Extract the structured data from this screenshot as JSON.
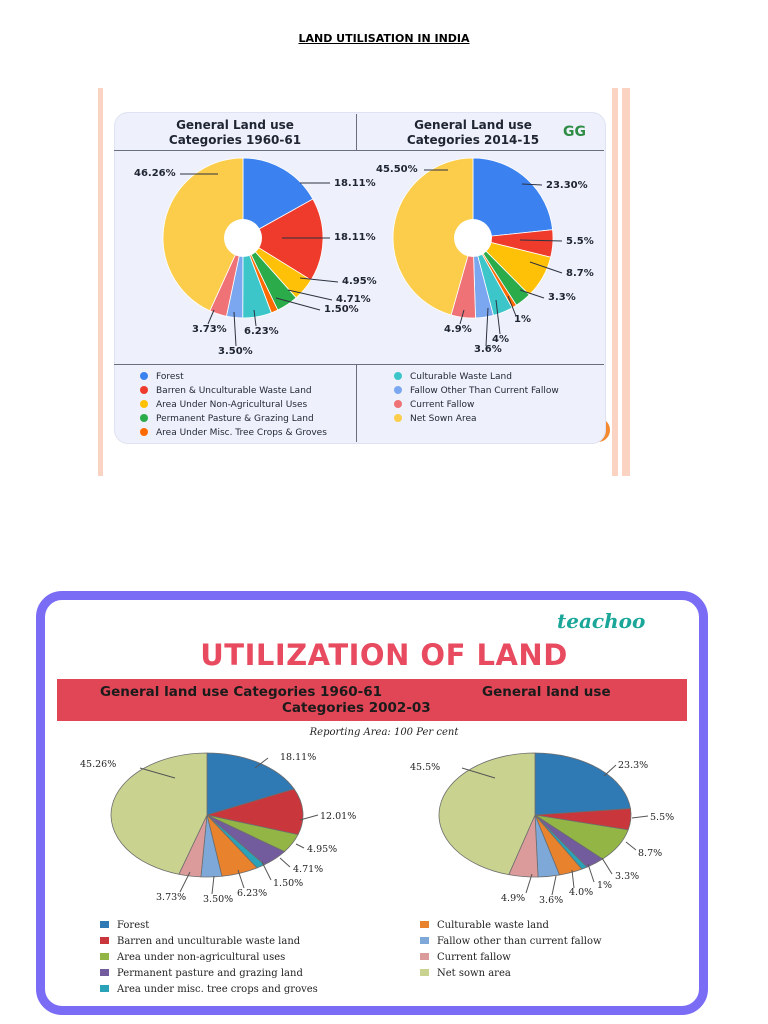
{
  "page": {
    "title": "LAND UTILISATION IN INDIA"
  },
  "figure1": {
    "header_left": "General Land use Categories 1960-61",
    "header_right": "General Land use Categories 2014-15",
    "logo_text": "GG",
    "colors": [
      "#3b82f0",
      "#ef3b2c",
      "#ffc107",
      "#2bab4a",
      "#ff6a00",
      "#3cc6c9",
      "#7ba7f0",
      "#ef7276",
      "#fbcd4b"
    ],
    "legend_left": [
      "Forest",
      "Barren & Unculturable Waste Land",
      "Area Under Non-Agricultural Uses",
      "Permanent Pasture & Grazing Land",
      "Area Under Misc. Tree Crops & Groves"
    ],
    "legend_right": [
      "Culturable Waste Land",
      "Fallow Other Than Current Fallow",
      "Current Fallow",
      "Net Sown Area"
    ]
  },
  "figure2": {
    "brand": "teachoo",
    "title": "UTILIZATION OF LAND",
    "banner_left": "General land use Categories 1960-61",
    "banner_right_1": "General land use",
    "banner_right_2": "Categories 2002-03",
    "reporting_area": "Reporting Area: 100 Per cent",
    "colors": [
      "#2f79b5",
      "#c9363c",
      "#93b545",
      "#735c9e",
      "#2aa3b8",
      "#e9822d",
      "#7ea8d8",
      "#dc9b9b",
      "#c9d38f"
    ],
    "legend_left": [
      "Forest",
      "Barren and unculturable waste land",
      "Area under non-agricultural uses",
      "Permanent pasture and grazing land",
      "Area under misc. tree crops and groves"
    ],
    "legend_right": [
      "Culturable waste land",
      "Fallow other than current fallow",
      "Current fallow",
      "Net sown area"
    ]
  },
  "chart_data": [
    {
      "type": "pie",
      "title": "General Land use Categories 1960-61",
      "categories": [
        "Forest",
        "Barren & Unculturable Waste Land",
        "Area Under Non-Agricultural Uses",
        "Permanent Pasture & Grazing Land",
        "Area Under Misc. Tree Crops & Groves",
        "Culturable Waste Land",
        "Fallow Other Than Current Fallow",
        "Current Fallow",
        "Net Sown Area"
      ],
      "values": [
        18.11,
        18.11,
        4.95,
        4.71,
        1.5,
        6.23,
        3.5,
        3.73,
        46.26
      ],
      "labels": [
        "18.11%",
        "18.11%",
        "4.95%",
        "4.71%",
        "1.50%",
        "6.23%",
        "3.50%",
        "3.73%",
        "46.26%"
      ]
    },
    {
      "type": "pie",
      "title": "General Land use Categories 2014-15",
      "categories": [
        "Forest",
        "Barren & Unculturable Waste Land",
        "Area Under Non-Agricultural Uses",
        "Permanent Pasture & Grazing Land",
        "Area Under Misc. Tree Crops & Groves",
        "Culturable Waste Land",
        "Fallow Other Than Current Fallow",
        "Current Fallow",
        "Net Sown Area"
      ],
      "values": [
        23.3,
        5.5,
        8.7,
        3.3,
        1,
        4,
        3.6,
        4.9,
        45.5
      ],
      "labels": [
        "23.30%",
        "5.5%",
        "8.7%",
        "3.3%",
        "1%",
        "4%",
        "3.6%",
        "4.9%",
        "45.50%"
      ]
    },
    {
      "type": "pie",
      "title": "General land use Categories 1960-61",
      "categories": [
        "Forest",
        "Barren and unculturable waste land",
        "Area under non-agricultural uses",
        "Permanent pasture and grazing land",
        "Area under misc. tree crops and groves",
        "Culturable waste land",
        "Fallow other than current fallow",
        "Current fallow",
        "Net sown area"
      ],
      "values": [
        18.11,
        12.01,
        4.95,
        4.71,
        1.5,
        6.23,
        3.5,
        3.73,
        45.26
      ],
      "labels": [
        "18.11%",
        "12.01%",
        "4.95%",
        "4.71%",
        "1.50%",
        "6.23%",
        "3.50%",
        "3.73%",
        "45.26%"
      ]
    },
    {
      "type": "pie",
      "title": "General land use Categories 2002-03",
      "categories": [
        "Forest",
        "Barren and unculturable waste land",
        "Area under non-agricultural uses",
        "Permanent pasture and grazing land",
        "Area under misc. tree crops and groves",
        "Culturable waste land",
        "Fallow other than current fallow",
        "Current fallow",
        "Net sown area"
      ],
      "values": [
        23.3,
        5.5,
        8.7,
        3.3,
        1,
        4,
        3.6,
        4.9,
        45.5
      ],
      "labels": [
        "23.3%",
        "5.5%",
        "8.7%",
        "3.3%",
        "1%",
        "4.0%",
        "3.6%",
        "4.9%",
        "45.5%"
      ]
    }
  ]
}
